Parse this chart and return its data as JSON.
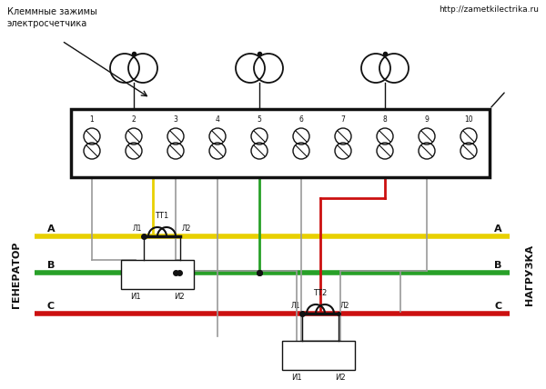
{
  "bg_color": "#ffffff",
  "title_top_left": "Клеммные зажимы\nэлектросчетчика",
  "title_top_right": "http://zametkilectrika.ru",
  "label_generator": "ГЕНЕРАТОР",
  "label_load": "НАГРУЗКА",
  "color_A": "#e8d000",
  "color_B": "#28a028",
  "color_C": "#cc1010",
  "color_gray": "#999999",
  "color_black": "#111111"
}
